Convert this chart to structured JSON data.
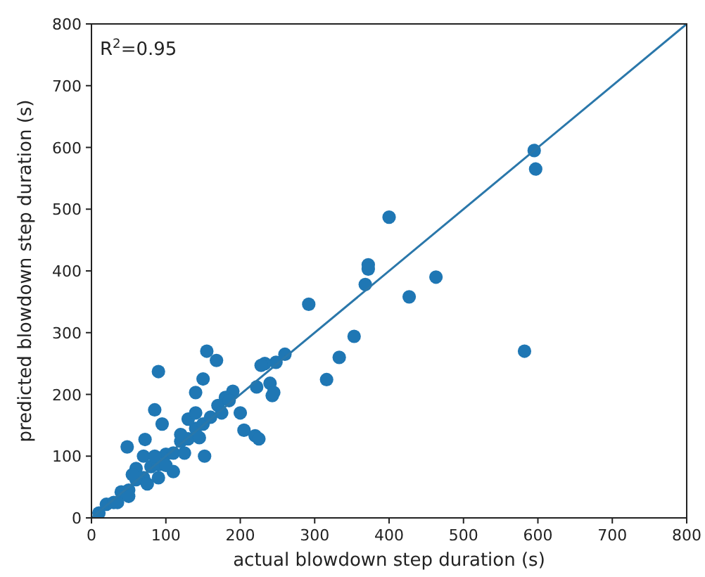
{
  "chart_data": {
    "type": "scatter",
    "xlabel": "actual blowdown step duration (s)",
    "ylabel": "predicted blowdown step duration (s)",
    "annotations": [
      "R$^{2}$=0.95"
    ],
    "xlim": [
      0,
      800
    ],
    "ylim": [
      0,
      800
    ],
    "xticks": [
      0,
      100,
      200,
      300,
      400,
      500,
      600,
      700,
      800
    ],
    "yticks": [
      0,
      100,
      200,
      300,
      400,
      500,
      600,
      700,
      800
    ],
    "grid": false,
    "marker": "circle",
    "series": [
      {
        "color": "#1f77b4",
        "x": [
          595,
          597,
          400,
          372,
          372,
          368,
          427,
          463,
          292,
          353,
          333,
          316,
          582,
          260,
          248,
          233,
          228,
          155,
          168,
          90,
          150,
          140,
          85,
          95,
          48,
          72,
          152,
          222,
          240,
          243,
          245,
          200,
          205,
          220,
          225,
          190,
          180,
          170,
          110,
          10,
          20,
          30,
          40,
          50,
          60,
          70,
          80,
          90,
          100,
          110,
          120,
          130,
          140,
          150,
          160,
          175,
          185,
          60,
          70,
          85,
          55,
          90,
          75,
          100,
          120,
          130,
          140,
          125,
          145,
          50,
          35
        ],
        "values": [
          595,
          565,
          487,
          410,
          403,
          378,
          358,
          390,
          346,
          294,
          260,
          224,
          270,
          265,
          252,
          250,
          247,
          270,
          255,
          237,
          225,
          203,
          175,
          152,
          115,
          127,
          100,
          212,
          218,
          198,
          203,
          170,
          142,
          133,
          128,
          205,
          195,
          182,
          75,
          8,
          22,
          25,
          42,
          45,
          62,
          65,
          83,
          86,
          103,
          105,
          124,
          128,
          145,
          152,
          163,
          170,
          190,
          80,
          100,
          100,
          70,
          65,
          55,
          85,
          135,
          160,
          170,
          105,
          130,
          35,
          25
        ]
      },
      {
        "type": "line",
        "color": "#2a77aa",
        "line_style": "solid",
        "marker": "none",
        "x": [
          0,
          800
        ],
        "values": [
          0,
          800
        ]
      }
    ]
  }
}
